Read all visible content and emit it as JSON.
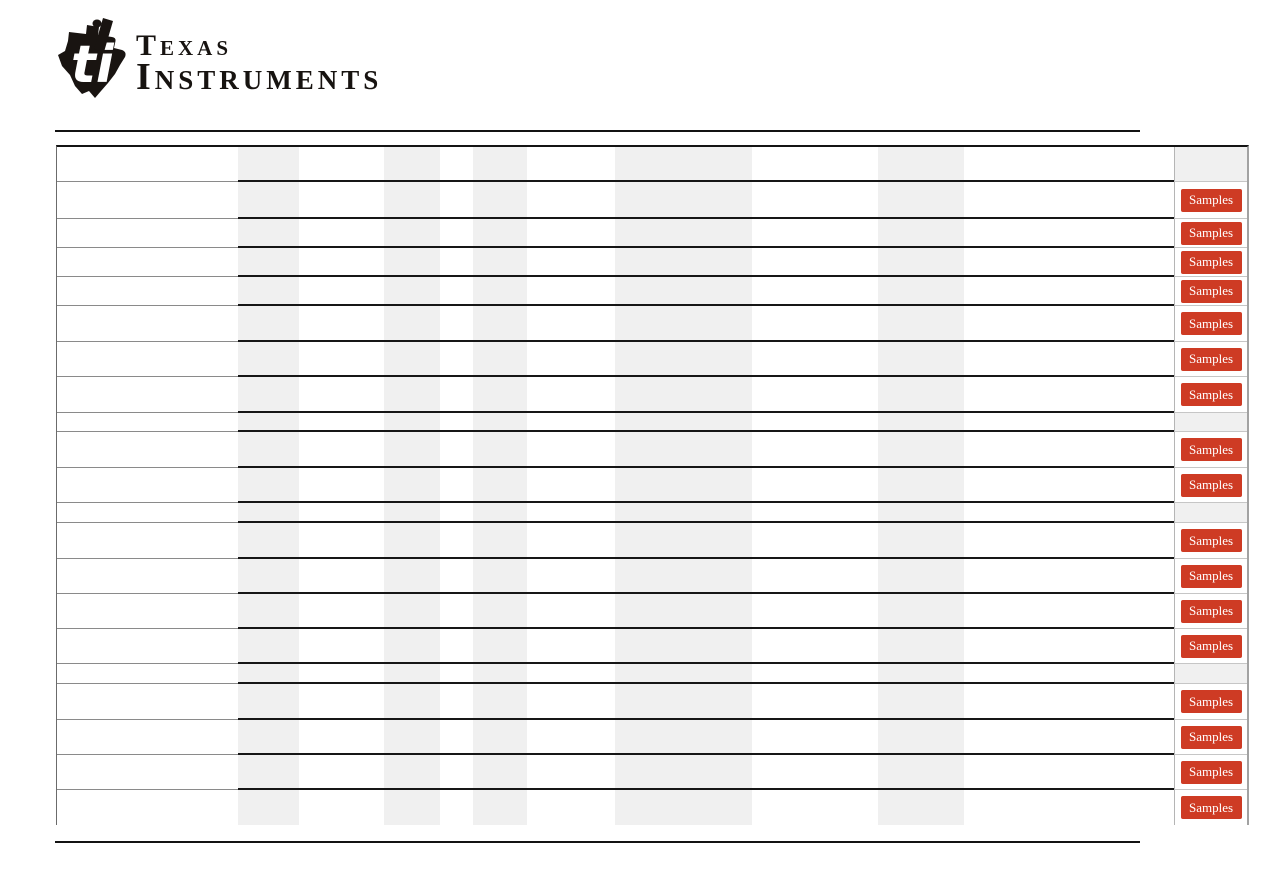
{
  "brand": {
    "line1": "Texas",
    "line2": "Instruments"
  },
  "table": {
    "samples_label": "Samples",
    "groups": [
      {
        "row_count": 7
      },
      {
        "row_count": 2
      },
      {
        "row_count": 4
      },
      {
        "row_count": 4
      }
    ]
  },
  "colors": {
    "accent_red": "#ce3b24",
    "band_gray": "#f0f0f0",
    "rule_black": "#131313"
  }
}
